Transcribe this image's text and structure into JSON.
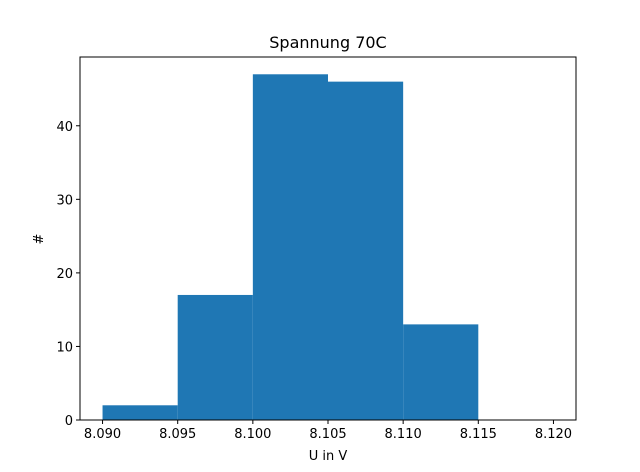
{
  "chart_data": {
    "type": "bar",
    "title": "Spannung 70C",
    "xlabel": "U in V",
    "ylabel": "#",
    "bins": [
      {
        "start": 8.09,
        "end": 8.095,
        "count": 2
      },
      {
        "start": 8.095,
        "end": 8.1,
        "count": 17
      },
      {
        "start": 8.1,
        "end": 8.105,
        "count": 47
      },
      {
        "start": 8.105,
        "end": 8.11,
        "count": 46
      },
      {
        "start": 8.11,
        "end": 8.115,
        "count": 13
      }
    ],
    "xlim": [
      8.0885,
      8.1215
    ],
    "ylim": [
      0,
      49.35
    ],
    "xticks": [
      8.09,
      8.095,
      8.1,
      8.105,
      8.11,
      8.115,
      8.12
    ],
    "xtick_labels": [
      "8.090",
      "8.095",
      "8.100",
      "8.105",
      "8.110",
      "8.115",
      "8.120"
    ],
    "yticks": [
      0,
      10,
      20,
      30,
      40
    ],
    "ytick_labels": [
      "0",
      "10",
      "20",
      "30",
      "40"
    ],
    "grid": false,
    "bar_color": "#1f77b4"
  }
}
